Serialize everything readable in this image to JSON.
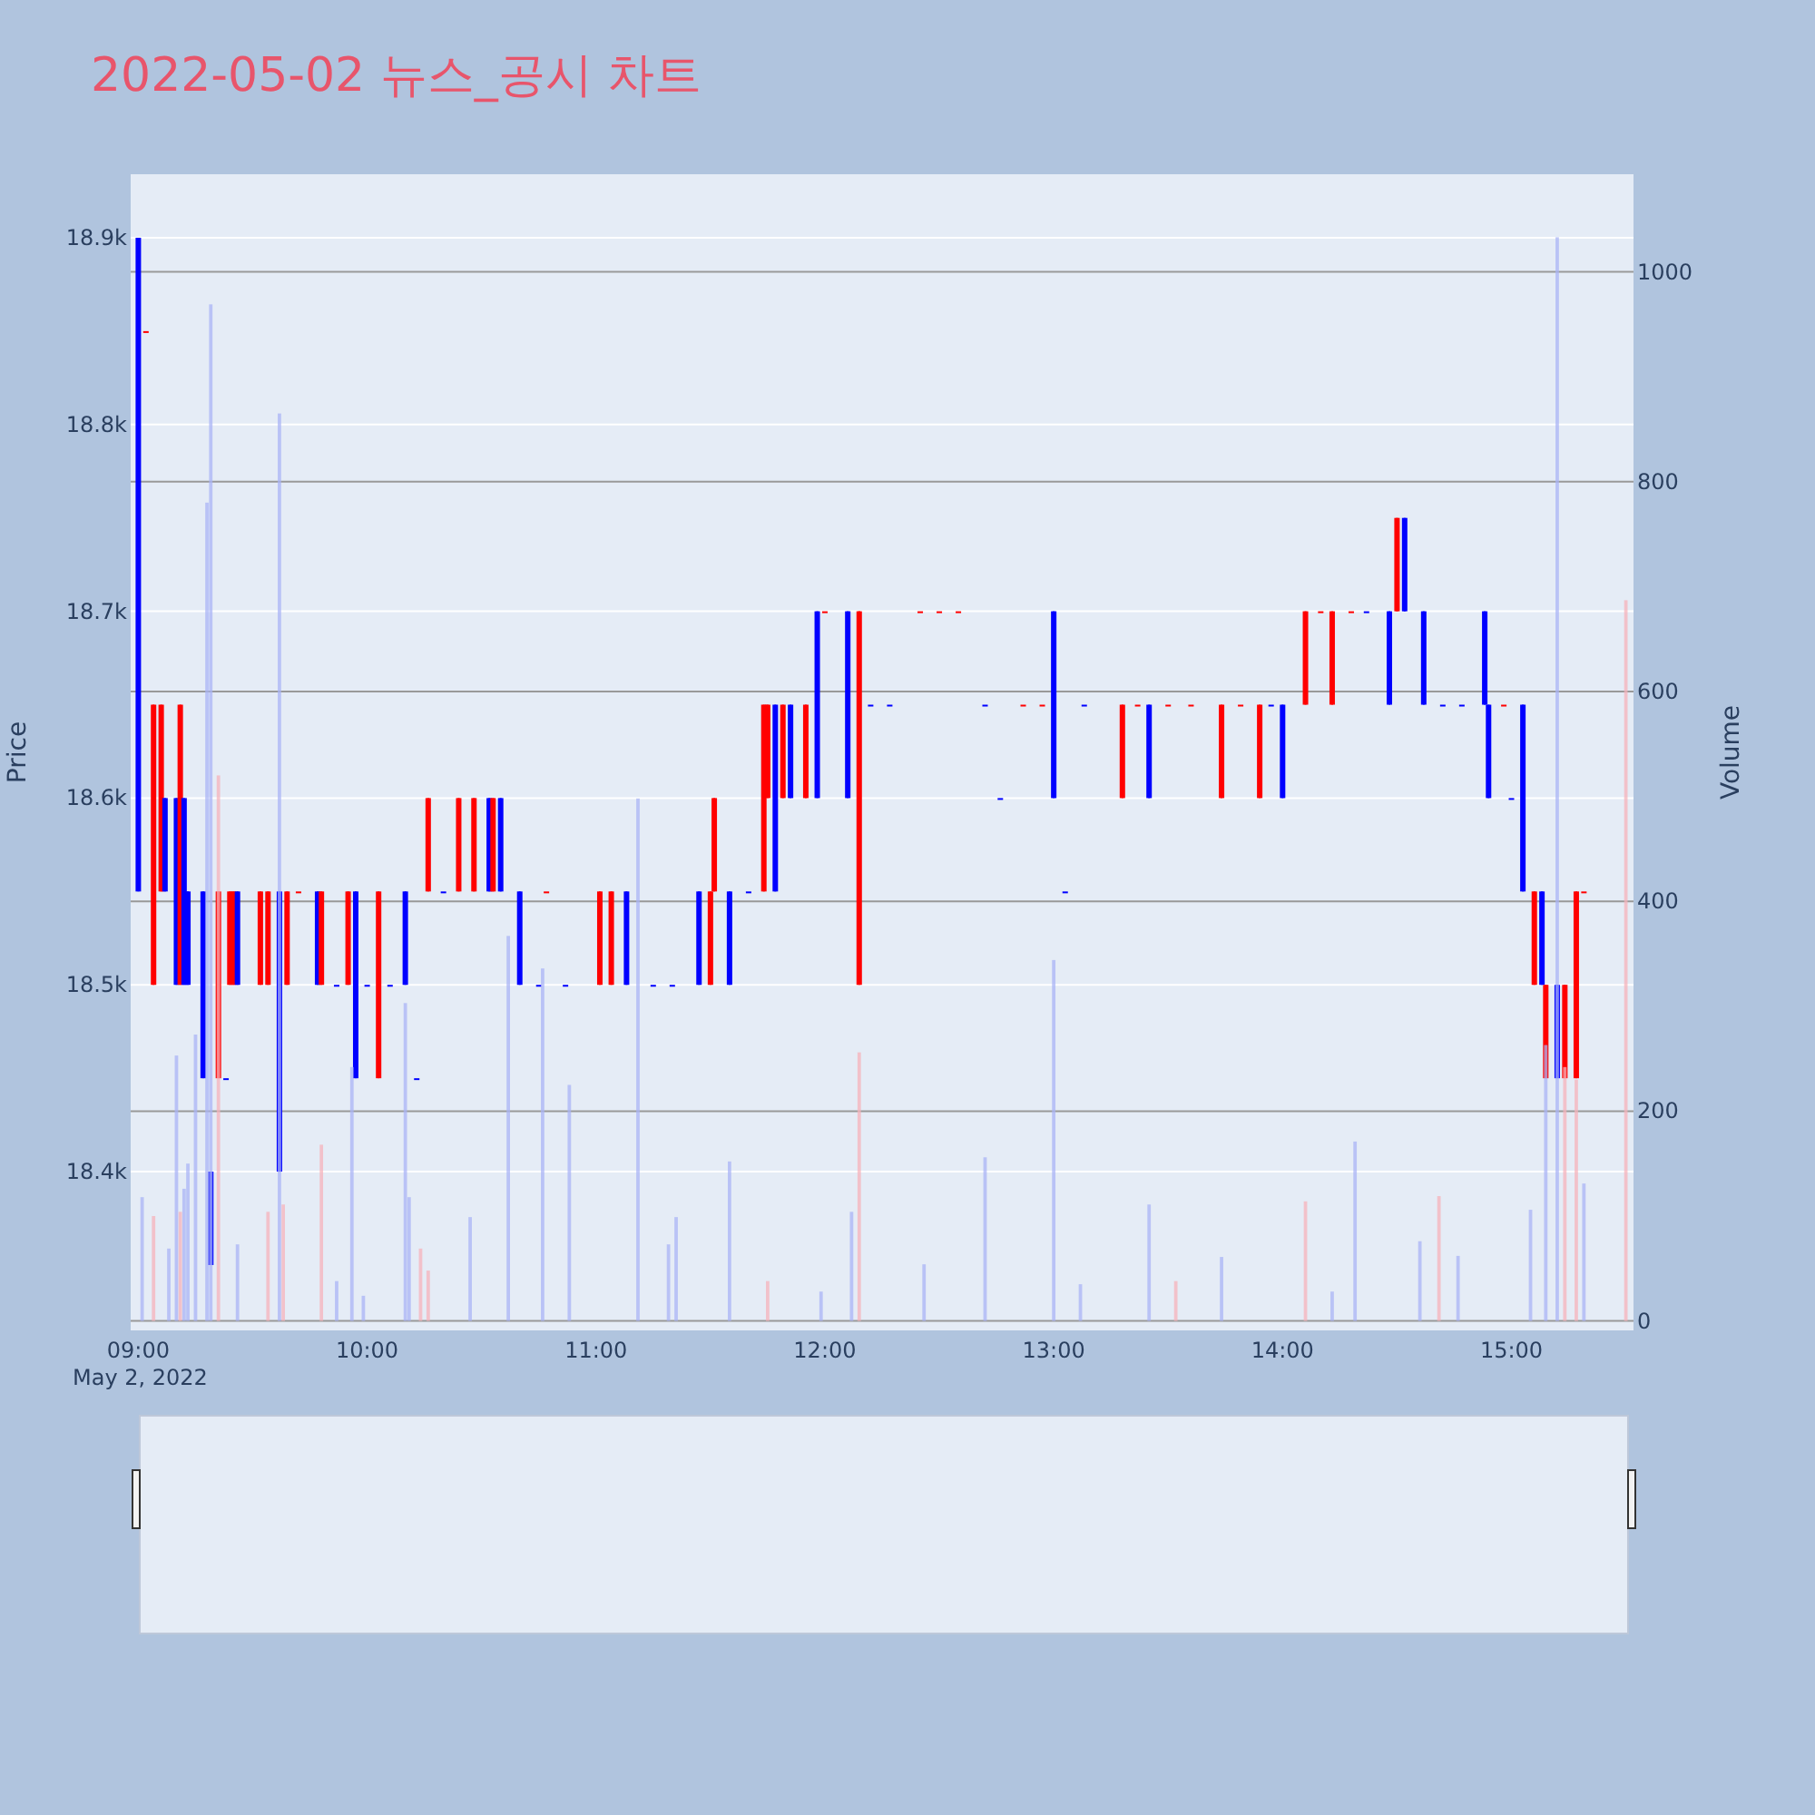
{
  "chart_data": {
    "type": "candlestick",
    "title": "2022-05-02 뉴스_공시 차트",
    "ylabel": "Price",
    "annotations": [
      "May 2, 2022"
    ],
    "y2label": "Volume",
    "grid": "y",
    "x": [
      "2022-05-02T09:00",
      "2022-05-02T09:02",
      "2022-05-02T09:04",
      "2022-05-02T09:06",
      "2022-05-02T09:07",
      "2022-05-02T09:10",
      "2022-05-02T09:11",
      "2022-05-02T09:12",
      "2022-05-02T09:13",
      "2022-05-02T09:17",
      "2022-05-02T09:19",
      "2022-05-02T09:21",
      "2022-05-02T09:23",
      "2022-05-02T09:24",
      "2022-05-02T09:25",
      "2022-05-02T09:26",
      "2022-05-02T09:32",
      "2022-05-02T09:34",
      "2022-05-02T09:37",
      "2022-05-02T09:39",
      "2022-05-02T09:42",
      "2022-05-02T09:47",
      "2022-05-02T09:48",
      "2022-05-02T09:52",
      "2022-05-02T09:55",
      "2022-05-02T09:57",
      "2022-05-02T10:00",
      "2022-05-02T10:03",
      "2022-05-02T10:06",
      "2022-05-02T10:10",
      "2022-05-02T10:13",
      "2022-05-02T10:16",
      "2022-05-02T10:20",
      "2022-05-02T10:24",
      "2022-05-02T10:28",
      "2022-05-02T10:32",
      "2022-05-02T10:33",
      "2022-05-02T10:35",
      "2022-05-02T10:40",
      "2022-05-02T10:45",
      "2022-05-02T10:47",
      "2022-05-02T10:52",
      "2022-05-02T11:01",
      "2022-05-02T11:04",
      "2022-05-02T11:08",
      "2022-05-02T11:15",
      "2022-05-02T11:20",
      "2022-05-02T11:27",
      "2022-05-02T11:30",
      "2022-05-02T11:31",
      "2022-05-02T11:35",
      "2022-05-02T11:40",
      "2022-05-02T11:44",
      "2022-05-02T11:45",
      "2022-05-02T11:47",
      "2022-05-02T11:49",
      "2022-05-02T11:51",
      "2022-05-02T11:55",
      "2022-05-02T11:58",
      "2022-05-02T12:00",
      "2022-05-02T12:06",
      "2022-05-02T12:09",
      "2022-05-02T12:12",
      "2022-05-02T12:17",
      "2022-05-02T12:25",
      "2022-05-02T12:30",
      "2022-05-02T12:35",
      "2022-05-02T12:42",
      "2022-05-02T12:46",
      "2022-05-02T12:52",
      "2022-05-02T12:57",
      "2022-05-02T13:00",
      "2022-05-02T13:03",
      "2022-05-02T13:08",
      "2022-05-02T13:18",
      "2022-05-02T13:22",
      "2022-05-02T13:25",
      "2022-05-02T13:30",
      "2022-05-02T13:36",
      "2022-05-02T13:44",
      "2022-05-02T13:49",
      "2022-05-02T13:54",
      "2022-05-02T13:57",
      "2022-05-02T14:00",
      "2022-05-02T14:06",
      "2022-05-02T14:10",
      "2022-05-02T14:13",
      "2022-05-02T14:18",
      "2022-05-02T14:22",
      "2022-05-02T14:28",
      "2022-05-02T14:30",
      "2022-05-02T14:32",
      "2022-05-02T14:37",
      "2022-05-02T14:42",
      "2022-05-02T14:47",
      "2022-05-02T14:53",
      "2022-05-02T14:54",
      "2022-05-02T14:58",
      "2022-05-02T15:00",
      "2022-05-02T15:03",
      "2022-05-02T15:06",
      "2022-05-02T15:08",
      "2022-05-02T15:09",
      "2022-05-02T15:12",
      "2022-05-02T15:14",
      "2022-05-02T15:17",
      "2022-05-02T15:19"
    ],
    "ohlc": [
      [
        18900,
        18900,
        18550,
        18550
      ],
      [
        18850,
        18850,
        18850,
        18850
      ],
      [
        18500,
        18650,
        18500,
        18650
      ],
      [
        18550,
        18650,
        18550,
        18650
      ],
      [
        18600,
        18600,
        18550,
        18550
      ],
      [
        18600,
        18600,
        18500,
        18500
      ],
      [
        18500,
        18650,
        18500,
        18650
      ],
      [
        18600,
        18600,
        18500,
        18500
      ],
      [
        18550,
        18550,
        18500,
        18500
      ],
      [
        18550,
        18550,
        18450,
        18450
      ],
      [
        18400,
        18400,
        18350,
        18350
      ],
      [
        18450,
        18550,
        18450,
        18550
      ],
      [
        18450,
        18450,
        18450,
        18450
      ],
      [
        18500,
        18550,
        18500,
        18550
      ],
      [
        18500,
        18550,
        18500,
        18550
      ],
      [
        18550,
        18550,
        18500,
        18500
      ],
      [
        18500,
        18550,
        18500,
        18550
      ],
      [
        18500,
        18550,
        18500,
        18550
      ],
      [
        18550,
        18550,
        18400,
        18400
      ],
      [
        18500,
        18550,
        18500,
        18550
      ],
      [
        18550,
        18550,
        18550,
        18550
      ],
      [
        18550,
        18550,
        18500,
        18500
      ],
      [
        18500,
        18550,
        18500,
        18550
      ],
      [
        18500,
        18500,
        18500,
        18500
      ],
      [
        18500,
        18550,
        18500,
        18550
      ],
      [
        18550,
        18550,
        18450,
        18450
      ],
      [
        18500,
        18500,
        18500,
        18500
      ],
      [
        18450,
        18550,
        18450,
        18550
      ],
      [
        18500,
        18500,
        18500,
        18500
      ],
      [
        18550,
        18550,
        18500,
        18500
      ],
      [
        18450,
        18450,
        18450,
        18450
      ],
      [
        18550,
        18600,
        18550,
        18600
      ],
      [
        18550,
        18550,
        18550,
        18550
      ],
      [
        18550,
        18600,
        18550,
        18600
      ],
      [
        18550,
        18600,
        18550,
        18600
      ],
      [
        18600,
        18600,
        18550,
        18550
      ],
      [
        18550,
        18600,
        18550,
        18600
      ],
      [
        18600,
        18600,
        18550,
        18550
      ],
      [
        18550,
        18550,
        18500,
        18500
      ],
      [
        18500,
        18500,
        18500,
        18500
      ],
      [
        18550,
        18550,
        18550,
        18550
      ],
      [
        18500,
        18500,
        18500,
        18500
      ],
      [
        18500,
        18550,
        18500,
        18550
      ],
      [
        18500,
        18550,
        18500,
        18550
      ],
      [
        18550,
        18550,
        18500,
        18500
      ],
      [
        18500,
        18500,
        18500,
        18500
      ],
      [
        18500,
        18500,
        18500,
        18500
      ],
      [
        18550,
        18550,
        18500,
        18500
      ],
      [
        18500,
        18550,
        18500,
        18550
      ],
      [
        18550,
        18600,
        18550,
        18600
      ],
      [
        18550,
        18550,
        18500,
        18500
      ],
      [
        18550,
        18550,
        18550,
        18550
      ],
      [
        18550,
        18650,
        18550,
        18650
      ],
      [
        18600,
        18650,
        18600,
        18650
      ],
      [
        18650,
        18650,
        18550,
        18550
      ],
      [
        18600,
        18650,
        18600,
        18650
      ],
      [
        18650,
        18650,
        18600,
        18600
      ],
      [
        18600,
        18650,
        18600,
        18650
      ],
      [
        18700,
        18700,
        18600,
        18600
      ],
      [
        18700,
        18700,
        18700,
        18700
      ],
      [
        18700,
        18700,
        18600,
        18600
      ],
      [
        18500,
        18700,
        18500,
        18700
      ],
      [
        18650,
        18650,
        18650,
        18650
      ],
      [
        18650,
        18650,
        18650,
        18650
      ],
      [
        18700,
        18700,
        18700,
        18700
      ],
      [
        18700,
        18700,
        18700,
        18700
      ],
      [
        18700,
        18700,
        18700,
        18700
      ],
      [
        18650,
        18650,
        18650,
        18650
      ],
      [
        18600,
        18600,
        18600,
        18600
      ],
      [
        18650,
        18650,
        18650,
        18650
      ],
      [
        18650,
        18650,
        18650,
        18650
      ],
      [
        18700,
        18700,
        18600,
        18600
      ],
      [
        18550,
        18550,
        18550,
        18550
      ],
      [
        18650,
        18650,
        18650,
        18650
      ],
      [
        18600,
        18650,
        18600,
        18650
      ],
      [
        18650,
        18650,
        18650,
        18650
      ],
      [
        18650,
        18650,
        18600,
        18600
      ],
      [
        18650,
        18650,
        18650,
        18650
      ],
      [
        18650,
        18650,
        18650,
        18650
      ],
      [
        18600,
        18650,
        18600,
        18650
      ],
      [
        18650,
        18650,
        18650,
        18650
      ],
      [
        18600,
        18650,
        18600,
        18650
      ],
      [
        18650,
        18650,
        18650,
        18650
      ],
      [
        18650,
        18650,
        18600,
        18600
      ],
      [
        18650,
        18700,
        18650,
        18700
      ],
      [
        18700,
        18700,
        18700,
        18700
      ],
      [
        18650,
        18700,
        18650,
        18700
      ],
      [
        18700,
        18700,
        18700,
        18700
      ],
      [
        18700,
        18700,
        18700,
        18700
      ],
      [
        18700,
        18700,
        18650,
        18650
      ],
      [
        18700,
        18750,
        18700,
        18750
      ],
      [
        18750,
        18750,
        18700,
        18700
      ],
      [
        18700,
        18700,
        18650,
        18650
      ],
      [
        18650,
        18650,
        18650,
        18650
      ],
      [
        18650,
        18650,
        18650,
        18650
      ],
      [
        18700,
        18700,
        18650,
        18650
      ],
      [
        18650,
        18650,
        18600,
        18600
      ],
      [
        18650,
        18650,
        18650,
        18650
      ],
      [
        18600,
        18600,
        18600,
        18600
      ],
      [
        18650,
        18650,
        18550,
        18550
      ],
      [
        18500,
        18550,
        18500,
        18550
      ],
      [
        18550,
        18550,
        18500,
        18500
      ],
      [
        18450,
        18500,
        18450,
        18500
      ],
      [
        18500,
        18500,
        18450,
        18450
      ],
      [
        18450,
        18500,
        18450,
        18500
      ],
      [
        18450,
        18550,
        18450,
        18550
      ],
      [
        18550,
        18550,
        18550,
        18550
      ]
    ],
    "colors": [
      "#0000ff",
      "#ff0000",
      "#ff0000",
      "#ff0000",
      "#0000ff",
      "#0000ff",
      "#ff0000",
      "#0000ff",
      "#0000ff",
      "#0000ff",
      "#0000ff",
      "#ff0000",
      "#0000ff",
      "#ff0000",
      "#ff0000",
      "#0000ff",
      "#ff0000",
      "#ff0000",
      "#0000ff",
      "#ff0000",
      "#ff0000",
      "#0000ff",
      "#ff0000",
      "#0000ff",
      "#ff0000",
      "#0000ff",
      "#0000ff",
      "#ff0000",
      "#0000ff",
      "#0000ff",
      "#0000ff",
      "#ff0000",
      "#0000ff",
      "#ff0000",
      "#ff0000",
      "#0000ff",
      "#ff0000",
      "#0000ff",
      "#0000ff",
      "#0000ff",
      "#ff0000",
      "#0000ff",
      "#ff0000",
      "#ff0000",
      "#0000ff",
      "#0000ff",
      "#0000ff",
      "#0000ff",
      "#ff0000",
      "#ff0000",
      "#0000ff",
      "#0000ff",
      "#ff0000",
      "#ff0000",
      "#0000ff",
      "#ff0000",
      "#0000ff",
      "#ff0000",
      "#0000ff",
      "#ff0000",
      "#0000ff",
      "#ff0000",
      "#0000ff",
      "#0000ff",
      "#ff0000",
      "#ff0000",
      "#ff0000",
      "#0000ff",
      "#0000ff",
      "#ff0000",
      "#ff0000",
      "#0000ff",
      "#0000ff",
      "#0000ff",
      "#ff0000",
      "#ff0000",
      "#0000ff",
      "#ff0000",
      "#ff0000",
      "#ff0000",
      "#ff0000",
      "#ff0000",
      "#0000ff",
      "#0000ff",
      "#ff0000",
      "#ff0000",
      "#ff0000",
      "#ff0000",
      "#0000ff",
      "#0000ff",
      "#ff0000",
      "#0000ff",
      "#0000ff",
      "#0000ff",
      "#0000ff",
      "#0000ff",
      "#0000ff",
      "#ff0000",
      "#0000ff",
      "#0000ff",
      "#ff0000",
      "#0000ff",
      "#ff0000",
      "#0000ff",
      "#ff0000",
      "#ff0000",
      "#ff0000"
    ],
    "series": [
      {
        "type": "bar",
        "axis": "y2",
        "x": [
          "2022-05-02T09:01",
          "2022-05-02T09:04",
          "2022-05-02T09:08",
          "2022-05-02T09:10",
          "2022-05-02T09:11",
          "2022-05-02T09:12",
          "2022-05-02T09:13",
          "2022-05-02T09:15",
          "2022-05-02T09:18",
          "2022-05-02T09:19",
          "2022-05-02T09:21",
          "2022-05-02T09:26",
          "2022-05-02T09:34",
          "2022-05-02T09:37",
          "2022-05-02T09:38",
          "2022-05-02T09:48",
          "2022-05-02T09:52",
          "2022-05-02T09:56",
          "2022-05-02T09:59",
          "2022-05-02T10:10",
          "2022-05-02T10:11",
          "2022-05-02T10:14",
          "2022-05-02T10:16",
          "2022-05-02T10:27",
          "2022-05-02T10:37",
          "2022-05-02T10:46",
          "2022-05-02T10:53",
          "2022-05-02T11:11",
          "2022-05-02T11:19",
          "2022-05-02T11:21",
          "2022-05-02T11:35",
          "2022-05-02T11:45",
          "2022-05-02T11:59",
          "2022-05-02T12:07",
          "2022-05-02T12:09",
          "2022-05-02T12:26",
          "2022-05-02T12:42",
          "2022-05-02T13:00",
          "2022-05-02T13:07",
          "2022-05-02T13:25",
          "2022-05-02T13:32",
          "2022-05-02T13:44",
          "2022-05-02T14:06",
          "2022-05-02T14:13",
          "2022-05-02T14:19",
          "2022-05-02T14:36",
          "2022-05-02T14:41",
          "2022-05-02T14:46",
          "2022-05-02T15:05",
          "2022-05-02T15:09",
          "2022-05-02T15:12",
          "2022-05-02T15:14",
          "2022-05-02T15:17",
          "2022-05-02T15:19",
          "2022-05-02T15:30"
        ],
        "values": [
          118,
          100,
          69,
          253,
          104,
          126,
          150,
          273,
          780,
          969,
          520,
          73,
          104,
          865,
          111,
          168,
          38,
          242,
          24,
          303,
          118,
          69,
          48,
          99,
          367,
          336,
          225,
          498,
          73,
          99,
          152,
          38,
          28,
          104,
          256,
          54,
          156,
          344,
          35,
          111,
          38,
          61,
          114,
          28,
          171,
          76,
          119,
          62,
          106,
          263,
          1033,
          242,
          230,
          131,
          687
        ],
        "colors": [
          "#aab4f6",
          "#f5b3bb",
          "#aab4f6",
          "#aab4f6",
          "#f5b3bb",
          "#aab4f6",
          "#aab4f6",
          "#aab4f6",
          "#aab4f6",
          "#aab4f6",
          "#f5b3bb",
          "#aab4f6",
          "#f5b3bb",
          "#aab4f6",
          "#f5b3bb",
          "#f5b3bb",
          "#aab4f6",
          "#aab4f6",
          "#aab4f6",
          "#aab4f6",
          "#aab4f6",
          "#f5b3bb",
          "#f5b3bb",
          "#aab4f6",
          "#aab4f6",
          "#aab4f6",
          "#aab4f6",
          "#aab4f6",
          "#aab4f6",
          "#aab4f6",
          "#aab4f6",
          "#f5b3bb",
          "#aab4f6",
          "#aab4f6",
          "#f5b3bb",
          "#aab4f6",
          "#aab4f6",
          "#aab4f6",
          "#aab4f6",
          "#aab4f6",
          "#f5b3bb",
          "#aab4f6",
          "#f5b3bb",
          "#aab4f6",
          "#aab4f6",
          "#aab4f6",
          "#f5b3bb",
          "#aab4f6",
          "#aab4f6",
          "#aab4f6",
          "#aab4f6",
          "#f5b3bb",
          "#f5b3bb",
          "#aab4f6",
          "#f5b3bb"
        ]
      }
    ],
    "xlim": [
      "2022-05-02T08:58",
      "2022-05-02T15:32"
    ],
    "xticks": [
      {
        "value": "2022-05-02T09:00",
        "label": "09:00"
      },
      {
        "value": "2022-05-02T10:00",
        "label": "10:00"
      },
      {
        "value": "2022-05-02T11:00",
        "label": "11:00"
      },
      {
        "value": "2022-05-02T12:00",
        "label": "12:00"
      },
      {
        "value": "2022-05-02T13:00",
        "label": "13:00"
      },
      {
        "value": "2022-05-02T14:00",
        "label": "14:00"
      },
      {
        "value": "2022-05-02T15:00",
        "label": "15:00"
      }
    ],
    "ylim": [
      18315,
      18934
    ],
    "yticks": [
      {
        "value": 18400,
        "label": "18.4k"
      },
      {
        "value": 18500,
        "label": "18.5k"
      },
      {
        "value": 18600,
        "label": "18.6k"
      },
      {
        "value": 18700,
        "label": "18.7k"
      },
      {
        "value": 18800,
        "label": "18.8k"
      },
      {
        "value": 18900,
        "label": "18.9k"
      }
    ],
    "y2lim": [
      -9,
      1093
    ],
    "y2ticks": [
      0,
      200,
      400,
      600,
      800,
      1000
    ]
  }
}
